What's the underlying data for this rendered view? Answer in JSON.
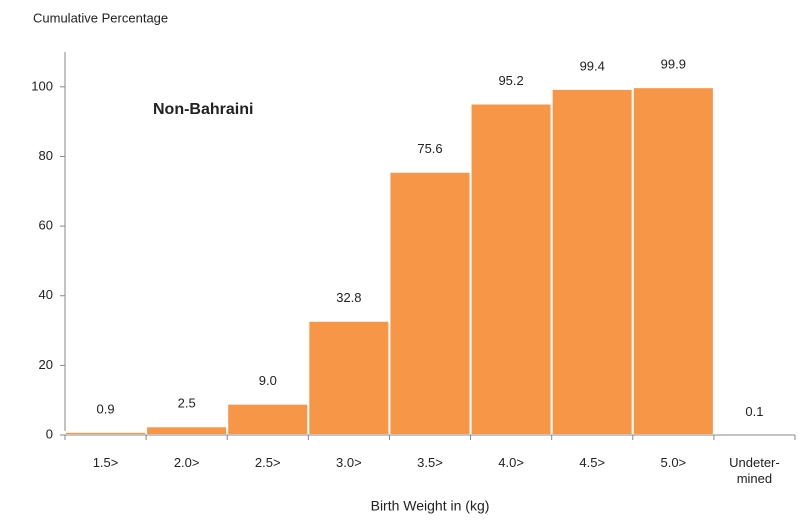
{
  "chart_data": {
    "type": "bar",
    "title": "Cumulative Percentage",
    "annotation": "Non-Bahraini",
    "x_label": "Birth Weight in (kg)",
    "categories": [
      "1.5>",
      "2.0>",
      "2.5>",
      "3.0>",
      "3.5>",
      "4.0>",
      "4.5>",
      "5.0>",
      "Undeter-mined"
    ],
    "values": [
      0.9,
      2.5,
      9.0,
      32.8,
      75.6,
      95.2,
      99.4,
      99.9,
      0.1
    ],
    "value_labels": [
      "0.9",
      "2.5",
      "9.0",
      "32.8",
      "75.6",
      "95.2",
      "99.4",
      "99.9",
      "0.1"
    ],
    "color": "#f79646",
    "ylim": [
      0,
      110
    ],
    "yticks": [
      0,
      20,
      40,
      60,
      80,
      100
    ],
    "grid": false
  }
}
